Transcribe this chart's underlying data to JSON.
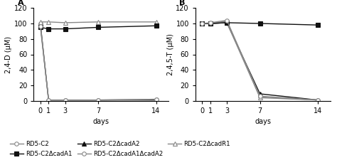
{
  "days": [
    0,
    1,
    3,
    7,
    14
  ],
  "panel_A": {
    "title": "A",
    "ylabel": "2,4-D (μM)",
    "series_order": [
      "RD5-C2ΔcadA2",
      "RD5-C2ΔcadA1ΔcadA2",
      "RD5-C2ΔcadR1",
      "RD5-C2ΔcadA1",
      "RD5-C2"
    ],
    "series": {
      "RD5-C2": [
        96,
        1,
        1,
        1,
        2
      ],
      "RD5-C2ΔcadA1": [
        95,
        93,
        93,
        95,
        97
      ],
      "RD5-C2ΔcadA2": [
        100,
        1,
        1,
        1,
        1
      ],
      "RD5-C2ΔcadA1ΔcadA2": [
        100,
        1,
        1,
        1,
        2
      ],
      "RD5-C2ΔcadR1": [
        102,
        102,
        101,
        102,
        102
      ]
    }
  },
  "panel_B": {
    "title": "B",
    "ylabel": "2,4,5-T (μM)",
    "series_order": [
      "RD5-C2ΔcadA2",
      "RD5-C2ΔcadA1ΔcadA2",
      "RD5-C2ΔcadR1",
      "RD5-C2ΔcadA1",
      "RD5-C2"
    ],
    "series": {
      "RD5-C2": [
        100,
        101,
        104,
        6,
        1
      ],
      "RD5-C2ΔcadA1": [
        100,
        100,
        101,
        100,
        98
      ],
      "RD5-C2ΔcadA2": [
        100,
        100,
        101,
        9,
        1
      ],
      "RD5-C2ΔcadA1ΔcadA2": [
        100,
        100,
        103,
        5,
        1
      ],
      "RD5-C2ΔcadR1": [
        100,
        100,
        101,
        4,
        1
      ]
    }
  },
  "series_styles": {
    "RD5-C2": {
      "color": "#888888",
      "marker": "o",
      "markersize": 4,
      "linewidth": 1.0,
      "fillstyle": "none"
    },
    "RD5-C2ΔcadA1": {
      "color": "#111111",
      "marker": "s",
      "markersize": 4,
      "linewidth": 1.0,
      "fillstyle": "full"
    },
    "RD5-C2ΔcadA2": {
      "color": "#111111",
      "marker": "^",
      "markersize": 4,
      "linewidth": 1.0,
      "fillstyle": "full"
    },
    "RD5-C2ΔcadA1ΔcadA2": {
      "color": "#888888",
      "marker": "o",
      "markersize": 4,
      "linewidth": 1.0,
      "fillstyle": "none"
    },
    "RD5-C2ΔcadR1": {
      "color": "#888888",
      "marker": "^",
      "markersize": 4,
      "linewidth": 1.0,
      "fillstyle": "none"
    }
  },
  "legend_labels": [
    "RD5-C2",
    "RD5-C2ΔcadA1",
    "RD5-C2ΔcadA2",
    "RD5-C2ΔcadA1ΔcadA2",
    "RD5-C2ΔcadR1"
  ],
  "ylim": [
    0,
    120
  ],
  "yticks": [
    0,
    20,
    40,
    60,
    80,
    100,
    120
  ],
  "xticks": [
    0,
    1,
    3,
    7,
    14
  ],
  "xlabel": "days",
  "fontsize": 7
}
